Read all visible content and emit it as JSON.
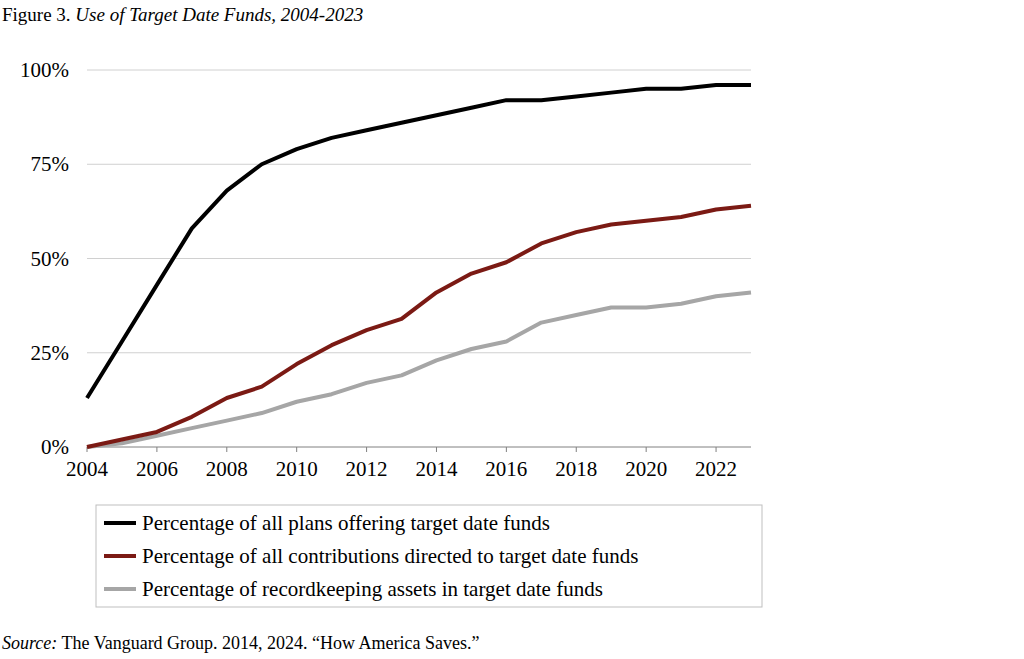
{
  "chart_data": {
    "type": "line",
    "title": "Figure 3. Use of Target Date Funds, 2004-2023",
    "source": "Source: The Vanguard Group. 2014, 2024. “How America Saves.”",
    "x": [
      2004,
      2005,
      2006,
      2007,
      2008,
      2009,
      2010,
      2011,
      2012,
      2013,
      2014,
      2015,
      2016,
      2017,
      2018,
      2019,
      2020,
      2021,
      2022,
      2023
    ],
    "series": [
      {
        "name": "Percentage of all plans offering target date funds",
        "color": "#000000",
        "values": [
          13,
          28,
          43,
          58,
          68,
          75,
          79,
          82,
          84,
          86,
          88,
          90,
          92,
          92,
          93,
          94,
          95,
          95,
          96,
          96
        ]
      },
      {
        "name": "Percentage of all contributions directed to target date funds",
        "color": "#7b1a14",
        "values": [
          0,
          2,
          4,
          8,
          13,
          16,
          22,
          27,
          31,
          34,
          41,
          46,
          49,
          54,
          57,
          59,
          60,
          61,
          63,
          64
        ]
      },
      {
        "name": "Percentage of recordkeeping assets in target date funds",
        "color": "#a6a6a6",
        "values": [
          0,
          1,
          3,
          5,
          7,
          9,
          12,
          14,
          17,
          19,
          23,
          26,
          28,
          33,
          35,
          37,
          37,
          38,
          40,
          41
        ]
      }
    ],
    "xlim": [
      2004,
      2023
    ],
    "xticks": [
      2004,
      2006,
      2008,
      2010,
      2012,
      2014,
      2016,
      2018,
      2020,
      2022
    ],
    "ylim": [
      0,
      100
    ],
    "yticks": [
      {
        "value": 0,
        "label": "0%"
      },
      {
        "value": 25,
        "label": "25%"
      },
      {
        "value": 50,
        "label": "50%"
      },
      {
        "value": 75,
        "label": "75%"
      },
      {
        "value": 100,
        "label": "100%"
      }
    ],
    "grid": true,
    "legend": "bottom"
  }
}
